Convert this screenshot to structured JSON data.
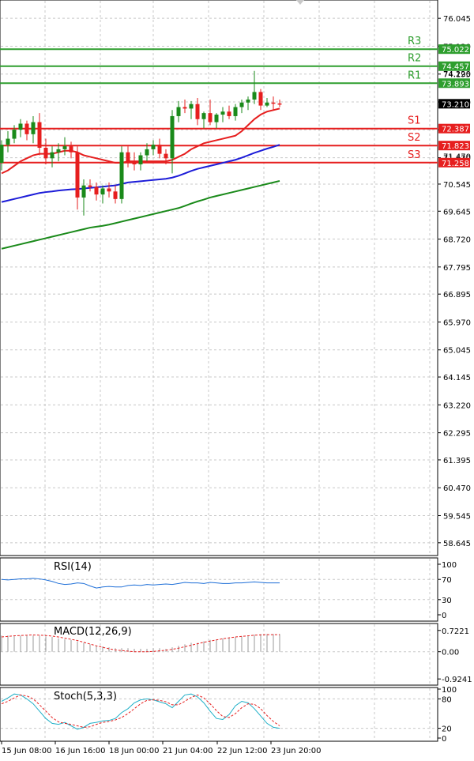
{
  "chart_data": {
    "type": "candlestick",
    "main": {
      "price_axis_labels": [
        "76.045",
        "75.120",
        "74.195",
        "73.270",
        "72.345",
        "71.420",
        "70.545",
        "69.645",
        "68.720",
        "67.795",
        "66.895",
        "65.970",
        "65.045",
        "64.145",
        "63.220",
        "62.295",
        "61.395",
        "60.470",
        "59.545",
        "58.645"
      ],
      "price_axis_label_values": [
        76.045,
        75.12,
        74.195,
        73.27,
        72.345,
        71.42,
        70.545,
        69.645,
        68.72,
        67.795,
        66.895,
        65.97,
        65.045,
        64.145,
        63.22,
        62.295,
        61.395,
        60.47,
        59.545,
        58.645
      ],
      "ylim": [
        58.3,
        76.6
      ],
      "current_price": {
        "label": "73.210",
        "value": 73.21
      },
      "levels": [
        {
          "name": "R3",
          "label": "75.022",
          "value": 75.022,
          "color": "#2e9e2e"
        },
        {
          "name": "R2",
          "label": "74.457",
          "value": 74.457,
          "color": "#2e9e2e"
        },
        {
          "name": "R1",
          "label": "73.893",
          "value": 73.893,
          "color": "#2e9e2e"
        },
        {
          "name": "S1",
          "label": "72.387",
          "value": 72.387,
          "color": "#e61e1e"
        },
        {
          "name": "S2",
          "label": "71.823",
          "value": 71.823,
          "color": "#e61e1e"
        },
        {
          "name": "S3",
          "label": "71.258",
          "value": 71.258,
          "color": "#e61e1e"
        }
      ],
      "extra_axis_labels": [
        {
          "label": "74.220",
          "value": 74.22
        },
        {
          "label": "71.470",
          "value": 71.47
        }
      ],
      "candles": [
        {
          "o": 71.25,
          "h": 72.0,
          "l": 71.0,
          "c": 71.85
        },
        {
          "o": 71.85,
          "h": 72.3,
          "l": 71.6,
          "c": 72.05
        },
        {
          "o": 72.05,
          "h": 72.5,
          "l": 71.9,
          "c": 72.35
        },
        {
          "o": 72.35,
          "h": 72.7,
          "l": 72.1,
          "c": 72.55
        },
        {
          "o": 72.55,
          "h": 72.65,
          "l": 72.0,
          "c": 72.2
        },
        {
          "o": 72.2,
          "h": 72.8,
          "l": 71.9,
          "c": 72.6
        },
        {
          "o": 72.6,
          "h": 72.9,
          "l": 71.5,
          "c": 71.75
        },
        {
          "o": 71.75,
          "h": 72.05,
          "l": 71.2,
          "c": 71.4
        },
        {
          "o": 71.4,
          "h": 71.8,
          "l": 71.1,
          "c": 71.6
        },
        {
          "o": 71.6,
          "h": 71.9,
          "l": 71.3,
          "c": 71.7
        },
        {
          "o": 71.7,
          "h": 72.1,
          "l": 71.5,
          "c": 71.8
        },
        {
          "o": 71.8,
          "h": 71.95,
          "l": 71.4,
          "c": 71.6
        },
        {
          "o": 71.6,
          "h": 71.8,
          "l": 69.7,
          "c": 70.1
        },
        {
          "o": 70.1,
          "h": 70.7,
          "l": 69.5,
          "c": 70.5
        },
        {
          "o": 70.5,
          "h": 70.7,
          "l": 70.3,
          "c": 70.45
        },
        {
          "o": 70.45,
          "h": 70.6,
          "l": 70.0,
          "c": 70.2
        },
        {
          "o": 70.2,
          "h": 70.5,
          "l": 69.9,
          "c": 70.4
        },
        {
          "o": 70.4,
          "h": 70.6,
          "l": 70.1,
          "c": 70.3
        },
        {
          "o": 70.3,
          "h": 70.5,
          "l": 69.9,
          "c": 70.05
        },
        {
          "o": 70.05,
          "h": 71.8,
          "l": 69.9,
          "c": 71.6
        },
        {
          "o": 71.6,
          "h": 71.8,
          "l": 71.1,
          "c": 71.3
        },
        {
          "o": 71.3,
          "h": 71.6,
          "l": 71.0,
          "c": 71.2
        },
        {
          "o": 71.2,
          "h": 71.6,
          "l": 71.0,
          "c": 71.5
        },
        {
          "o": 71.5,
          "h": 71.9,
          "l": 71.3,
          "c": 71.7
        },
        {
          "o": 71.7,
          "h": 72.0,
          "l": 71.5,
          "c": 71.85
        },
        {
          "o": 71.85,
          "h": 72.05,
          "l": 71.4,
          "c": 71.55
        },
        {
          "o": 71.55,
          "h": 71.7,
          "l": 71.2,
          "c": 71.4
        },
        {
          "o": 71.4,
          "h": 73.0,
          "l": 70.9,
          "c": 72.8
        },
        {
          "o": 72.8,
          "h": 73.3,
          "l": 72.6,
          "c": 73.1
        },
        {
          "o": 73.1,
          "h": 73.35,
          "l": 72.9,
          "c": 73.05
        },
        {
          "o": 73.05,
          "h": 73.3,
          "l": 72.7,
          "c": 73.2
        },
        {
          "o": 73.2,
          "h": 73.4,
          "l": 72.5,
          "c": 72.7
        },
        {
          "o": 72.7,
          "h": 72.95,
          "l": 72.4,
          "c": 72.9
        },
        {
          "o": 72.9,
          "h": 73.35,
          "l": 72.5,
          "c": 72.6
        },
        {
          "o": 72.6,
          "h": 72.9,
          "l": 72.4,
          "c": 72.85
        },
        {
          "o": 72.85,
          "h": 73.1,
          "l": 72.6,
          "c": 72.95
        },
        {
          "o": 72.95,
          "h": 73.15,
          "l": 72.7,
          "c": 72.8
        },
        {
          "o": 72.8,
          "h": 73.2,
          "l": 72.65,
          "c": 73.1
        },
        {
          "o": 73.1,
          "h": 73.35,
          "l": 72.9,
          "c": 73.25
        },
        {
          "o": 73.25,
          "h": 73.45,
          "l": 73.0,
          "c": 73.35
        },
        {
          "o": 73.35,
          "h": 74.3,
          "l": 73.2,
          "c": 73.6
        },
        {
          "o": 73.6,
          "h": 73.7,
          "l": 73.0,
          "c": 73.15
        },
        {
          "o": 73.15,
          "h": 73.4,
          "l": 73.1,
          "c": 73.25
        },
        {
          "o": 73.25,
          "h": 73.45,
          "l": 73.0,
          "c": 73.22
        },
        {
          "o": 73.22,
          "h": 73.35,
          "l": 73.1,
          "c": 73.21
        }
      ],
      "ma_series": [
        {
          "name": "",
          "color": "#e61e1e",
          "values": [
            70.9,
            71.0,
            71.15,
            71.3,
            71.4,
            71.5,
            71.55,
            71.55,
            71.55,
            71.6,
            71.65,
            71.65,
            71.6,
            71.5,
            71.45,
            71.4,
            71.35,
            71.3,
            71.25,
            71.25,
            71.3,
            71.3,
            71.3,
            71.3,
            71.3,
            71.3,
            71.3,
            71.35,
            71.45,
            71.55,
            71.7,
            71.8,
            71.9,
            71.95,
            72.0,
            72.05,
            72.1,
            72.15,
            72.3,
            72.5,
            72.7,
            72.85,
            72.95,
            73.0,
            73.05
          ]
        },
        {
          "name": "",
          "color": "#1c1cd8",
          "values": [
            69.95,
            70.0,
            70.05,
            70.1,
            70.15,
            70.2,
            70.25,
            70.28,
            70.3,
            70.33,
            70.35,
            70.37,
            70.38,
            70.4,
            70.42,
            70.44,
            70.46,
            70.48,
            70.5,
            70.55,
            70.6,
            70.62,
            70.64,
            70.66,
            70.68,
            70.7,
            70.72,
            70.76,
            70.82,
            70.9,
            70.98,
            71.05,
            71.1,
            71.15,
            71.2,
            71.25,
            71.3,
            71.35,
            71.42,
            71.5,
            71.58,
            71.65,
            71.72,
            71.78,
            71.85
          ]
        },
        {
          "name": "",
          "color": "#1a8a1a",
          "values": [
            68.4,
            68.45,
            68.5,
            68.55,
            68.6,
            68.65,
            68.7,
            68.75,
            68.8,
            68.85,
            68.9,
            68.95,
            69.0,
            69.05,
            69.1,
            69.13,
            69.16,
            69.2,
            69.25,
            69.3,
            69.35,
            69.4,
            69.45,
            69.5,
            69.55,
            69.6,
            69.65,
            69.7,
            69.75,
            69.82,
            69.9,
            69.97,
            70.03,
            70.1,
            70.15,
            70.2,
            70.25,
            70.3,
            70.35,
            70.4,
            70.45,
            70.5,
            70.55,
            70.6,
            70.65
          ]
        }
      ]
    },
    "x_tick_labels": [
      "15 Jun 08:00",
      "16 Jun 16:00",
      "18 Jun 00:00",
      "21 Jun 04:00",
      "22 Jun 12:00",
      "23 Jun 20:00"
    ],
    "rsi": {
      "label": "RSI(14)",
      "axis_labels": [
        "100",
        "70",
        "30",
        "0"
      ],
      "axis_values": [
        100,
        70,
        30,
        0
      ],
      "ylim": [
        0,
        100
      ],
      "values": [
        70,
        69,
        70,
        71,
        71,
        72,
        71,
        69,
        66,
        62,
        60,
        61,
        63,
        62,
        57,
        53,
        55,
        56,
        55,
        55,
        58,
        59,
        58,
        60,
        59,
        60,
        61,
        60,
        62,
        64,
        63,
        63,
        62,
        64,
        63,
        62,
        62,
        63,
        63,
        64,
        65,
        64,
        63,
        63,
        63
      ]
    },
    "macd": {
      "label": "MACD(12,26,9)",
      "axis_labels": [
        "0.7221",
        "0.00",
        "-0.9241"
      ],
      "axis_values": [
        0.7221,
        0.0,
        -0.9241
      ],
      "ylim": [
        -1.0,
        0.85
      ],
      "histogram": [
        0.55,
        0.55,
        0.55,
        0.55,
        0.55,
        0.55,
        0.55,
        0.52,
        0.5,
        0.45,
        0.42,
        0.4,
        0.35,
        0.3,
        0.25,
        0.2,
        0.18,
        0.15,
        0.12,
        0.12,
        0.12,
        0.1,
        0.1,
        0.1,
        0.12,
        0.12,
        0.1,
        0.15,
        0.2,
        0.25,
        0.3,
        0.3,
        0.35,
        0.4,
        0.42,
        0.45,
        0.48,
        0.5,
        0.52,
        0.55,
        0.58,
        0.6,
        0.6,
        0.6,
        0.6
      ],
      "signal": [
        0.5,
        0.52,
        0.54,
        0.55,
        0.56,
        0.57,
        0.56,
        0.55,
        0.53,
        0.5,
        0.46,
        0.42,
        0.38,
        0.32,
        0.26,
        0.2,
        0.15,
        0.1,
        0.06,
        0.04,
        0.02,
        0.0,
        0.0,
        0.0,
        0.01,
        0.03,
        0.05,
        0.08,
        0.12,
        0.17,
        0.22,
        0.27,
        0.32,
        0.36,
        0.4,
        0.44,
        0.47,
        0.5,
        0.52,
        0.54,
        0.56,
        0.57,
        0.58,
        0.58,
        0.58
      ]
    },
    "stoch": {
      "label": "Stoch(5,3,3)",
      "axis_labels": [
        "100",
        "80",
        "20",
        "0"
      ],
      "axis_values": [
        100,
        80,
        20,
        0
      ],
      "ylim": [
        0,
        100
      ],
      "k": [
        75,
        82,
        90,
        88,
        80,
        70,
        55,
        40,
        30,
        28,
        32,
        25,
        18,
        22,
        30,
        32,
        35,
        36,
        40,
        52,
        60,
        72,
        78,
        80,
        78,
        74,
        70,
        62,
        75,
        88,
        90,
        84,
        72,
        55,
        40,
        38,
        48,
        66,
        75,
        72,
        60,
        45,
        30,
        22,
        20
      ],
      "d": [
        70,
        75,
        82,
        88,
        86,
        80,
        68,
        55,
        42,
        33,
        30,
        28,
        25,
        22,
        23,
        28,
        32,
        34,
        37,
        42,
        50,
        60,
        70,
        77,
        78,
        77,
        74,
        68,
        68,
        75,
        83,
        88,
        82,
        70,
        56,
        44,
        42,
        50,
        62,
        70,
        69,
        60,
        46,
        34,
        25
      ]
    }
  }
}
